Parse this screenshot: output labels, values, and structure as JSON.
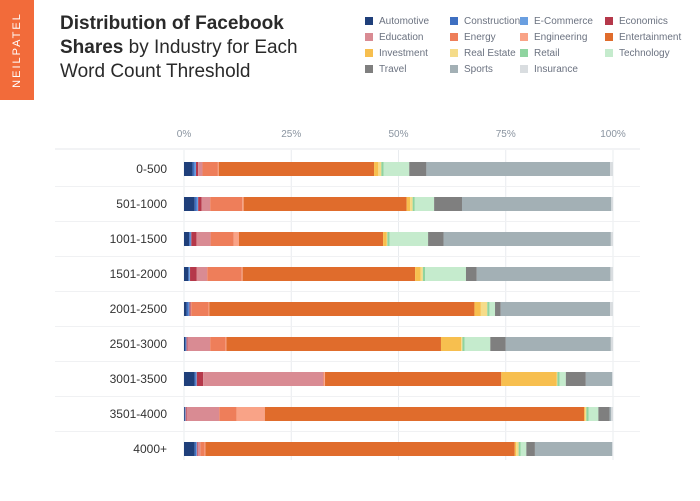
{
  "brand": {
    "logo_text": "NEILPATEL"
  },
  "header": {
    "title_bold": "Distribution of Facebook Shares",
    "title_rest": " by Industry for Each Word Count Threshold"
  },
  "chart_data": {
    "type": "bar",
    "orientation": "horizontal",
    "stacked": true,
    "title": "Distribution of Facebook Shares by Industry for Each Word Count Threshold",
    "xlabel": "",
    "ylabel": "",
    "xlim": [
      0,
      100
    ],
    "x_ticks": [
      "0%",
      "25%",
      "50%",
      "75%",
      "100%"
    ],
    "grid": "vertical",
    "legend_position": "top-right",
    "categories": [
      "0-500",
      "501-1000",
      "1001-1500",
      "1501-2000",
      "2001-2500",
      "2501-3000",
      "3001-3500",
      "3501-4000",
      "4000+"
    ],
    "series": [
      {
        "name": "Automotive",
        "color": "#1f3f7a",
        "values": [
          2,
          2.5,
          1.2,
          1,
          0.6,
          0.3,
          2.5,
          0.2,
          2.5
        ]
      },
      {
        "name": "Construction",
        "color": "#3e6fc1",
        "values": [
          0.5,
          0.5,
          0.3,
          0.2,
          0.5,
          0.2,
          0.3,
          0.1,
          0.3
        ]
      },
      {
        "name": "E-Commerce",
        "color": "#6a9fe0",
        "values": [
          0.3,
          0.3,
          0.2,
          0.2,
          0.2,
          0.1,
          0.2,
          0.1,
          0.2
        ]
      },
      {
        "name": "Economics",
        "color": "#b5384a",
        "values": [
          0.5,
          0.8,
          1.2,
          1.5,
          0.2,
          0.2,
          1.5,
          0.2,
          0.2
        ]
      },
      {
        "name": "Education",
        "color": "#d98b93",
        "values": [
          1,
          2,
          3.3,
          2.5,
          0.2,
          5.3,
          28.3,
          7.6,
          0.6
        ]
      },
      {
        "name": "Energy",
        "color": "#ee7e5a",
        "values": [
          3.6,
          7.5,
          5.4,
          8,
          4,
          3.6,
          0.2,
          4,
          1
        ]
      },
      {
        "name": "Engineering",
        "color": "#f9a387",
        "values": [
          0.2,
          0.3,
          1.2,
          0.2,
          0.2,
          0.2,
          0.2,
          6.6,
          0.2
        ]
      },
      {
        "name": "Entertainment",
        "color": "#e06c2c",
        "values": [
          36.2,
          38,
          33.6,
          40,
          61.8,
          50,
          41.5,
          74.3,
          72.1
        ]
      },
      {
        "name": "Investment",
        "color": "#f7bf4f",
        "values": [
          1,
          0.8,
          0.8,
          1.3,
          1.5,
          4.7,
          13,
          0.2,
          0.3
        ]
      },
      {
        "name": "Real Estate",
        "color": "#f5dc8a",
        "values": [
          0.7,
          0.6,
          0.2,
          0.5,
          1.5,
          0.3,
          0.2,
          0.3,
          0.6
        ]
      },
      {
        "name": "Retail",
        "color": "#8fd4a0",
        "values": [
          0.5,
          0.5,
          0.5,
          0.5,
          0.5,
          0.5,
          0.5,
          0.5,
          0.5
        ]
      },
      {
        "name": "Technology",
        "color": "#c5ebcd",
        "values": [
          6,
          4.5,
          9,
          9.5,
          1.3,
          6,
          1.5,
          2.3,
          1.3
        ]
      },
      {
        "name": "Travel",
        "color": "#7f7f7f",
        "values": [
          4,
          6.5,
          3.6,
          2.5,
          1.3,
          3.6,
          4.7,
          2.6,
          2
        ]
      },
      {
        "name": "Sports",
        "color": "#a3b0b5",
        "values": [
          42.8,
          34.8,
          39,
          31,
          25.5,
          24.5,
          6.2,
          0.4,
          18
        ]
      },
      {
        "name": "Insurance",
        "color": "#d9dde0",
        "values": [
          0.7,
          0.4,
          0.5,
          0.6,
          0.7,
          0.5,
          0.2,
          0.4,
          0.2
        ]
      }
    ]
  }
}
